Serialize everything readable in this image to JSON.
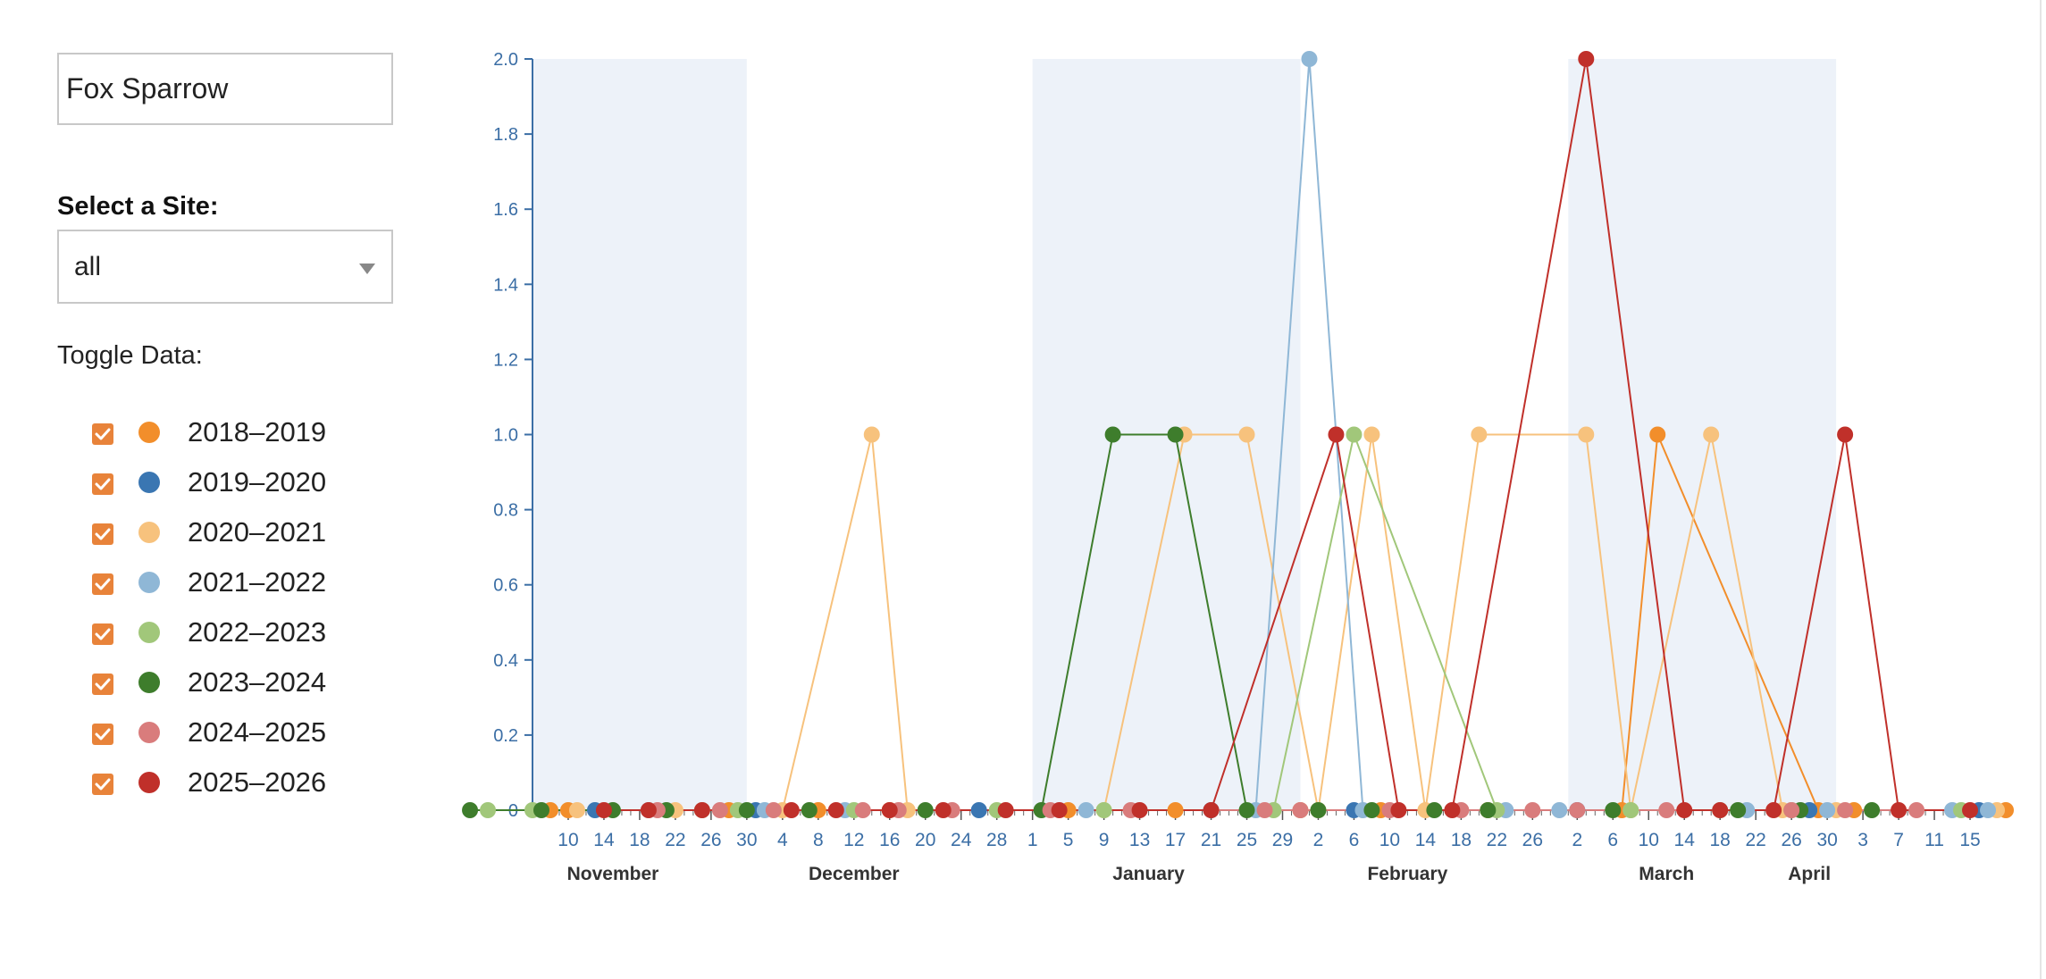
{
  "sidebar": {
    "species": "Fox Sparrow",
    "site_label": "Select a Site:",
    "site_value": "all",
    "toggle_label": "Toggle Data:"
  },
  "colors": {
    "check": "#e8833a",
    "axis": "#3b6ea5",
    "band": "#edf2f9",
    "seasons": {
      "2018–2019": "#f28e2b",
      "2019–2020": "#3a76b2",
      "2020–2021": "#f7c27d",
      "2021–2022": "#8fb7d6",
      "2022–2023": "#a1c77a",
      "2023–2024": "#3e7d2c",
      "2024–2025": "#d97c7c",
      "2025–2026": "#c0302a"
    }
  },
  "chart_data": {
    "type": "line",
    "ylim": [
      0,
      2.0
    ],
    "yticks": [
      "2.0",
      "1.8",
      "1.6",
      "1.4",
      "1.2",
      "1.0",
      "0.8",
      "0.6",
      "0.4",
      "0.2",
      "0"
    ],
    "xlim": [
      "2019-11-06",
      "2020-04-19"
    ],
    "xtick_labels": [
      "10",
      "14",
      "18",
      "22",
      "26",
      "30",
      "4",
      "8",
      "12",
      "16",
      "20",
      "24",
      "28",
      "1",
      "5",
      "9",
      "13",
      "17",
      "21",
      "25",
      "29",
      "2",
      "6",
      "10",
      "14",
      "18",
      "22",
      "26",
      "2",
      "6",
      "10",
      "14",
      "18",
      "22",
      "26",
      "30",
      "3",
      "7",
      "11",
      "15"
    ],
    "xtick_dates": [
      "2019-11-10",
      "2019-11-14",
      "2019-11-18",
      "2019-11-22",
      "2019-11-26",
      "2019-11-30",
      "2019-12-04",
      "2019-12-08",
      "2019-12-12",
      "2019-12-16",
      "2019-12-20",
      "2019-12-24",
      "2019-12-28",
      "2020-01-01",
      "2020-01-05",
      "2020-01-09",
      "2020-01-13",
      "2020-01-17",
      "2020-01-21",
      "2020-01-25",
      "2020-01-29",
      "2020-02-02",
      "2020-02-06",
      "2020-02-10",
      "2020-02-14",
      "2020-02-18",
      "2020-02-22",
      "2020-02-26",
      "2020-03-02",
      "2020-03-06",
      "2020-03-10",
      "2020-03-14",
      "2020-03-18",
      "2020-03-22",
      "2020-03-26",
      "2020-03-30",
      "2020-04-03",
      "2020-04-07",
      "2020-04-11",
      "2020-04-15"
    ],
    "months": [
      "November",
      "December",
      "January",
      "February",
      "March",
      "April"
    ],
    "month_mids": [
      "2019-11-15",
      "2019-12-12",
      "2020-01-14",
      "2020-02-12",
      "2020-03-12",
      "2020-03-28"
    ],
    "bands": [
      [
        "2019-11-06",
        "2019-11-30"
      ],
      [
        "2020-01-01",
        "2020-01-31"
      ],
      [
        "2020-03-01",
        "2020-03-31"
      ]
    ],
    "series": [
      {
        "name": "2018–2019",
        "x": [
          "2019-11-08",
          "2019-11-10",
          "2019-11-28",
          "2019-12-08",
          "2019-12-16",
          "2020-01-05",
          "2020-01-17",
          "2020-01-31",
          "2020-02-09",
          "2020-02-21",
          "2020-03-07",
          "2020-03-11",
          "2020-03-29",
          "2020-04-02",
          "2020-04-19"
        ],
        "y": [
          0,
          0,
          0,
          0,
          0,
          0,
          0,
          0,
          0,
          0,
          0,
          1,
          0,
          0,
          0
        ]
      },
      {
        "name": "2019-2020",
        "x": [
          "2019-11-13",
          "2019-12-01",
          "2019-12-26",
          "2020-01-21",
          "2020-02-06",
          "2020-03-02",
          "2020-03-28",
          "2020-04-16"
        ],
        "y": [
          0,
          0,
          0,
          0,
          0,
          0,
          0,
          0
        ]
      },
      {
        "name": "2020–2021",
        "x": [
          "2019-11-11",
          "2019-11-22",
          "2019-12-04",
          "2019-12-14",
          "2019-12-18",
          "2020-01-09",
          "2020-01-18",
          "2020-01-25",
          "2020-02-02",
          "2020-02-08",
          "2020-02-14",
          "2020-02-20",
          "2020-03-03",
          "2020-03-08",
          "2020-03-17",
          "2020-03-25",
          "2020-03-31",
          "2020-04-18"
        ],
        "y": [
          0,
          0,
          0,
          1,
          0,
          0,
          1,
          1,
          0,
          1,
          0,
          1,
          1,
          0,
          1,
          0,
          0,
          0
        ]
      },
      {
        "name": "2021–2022",
        "x": [
          "2019-11-19",
          "2019-12-02",
          "2019-12-11",
          "2020-01-07",
          "2020-01-26",
          "2020-02-01",
          "2020-02-07",
          "2020-02-23",
          "2020-02-29",
          "2020-03-21",
          "2020-03-30",
          "2020-04-13",
          "2020-04-17"
        ],
        "y": [
          0,
          0,
          0,
          0,
          0,
          2,
          0,
          0,
          0,
          0,
          0,
          0,
          0
        ]
      },
      {
        "name": "2022–2023",
        "x": [
          "2019-11-01",
          "2019-11-06",
          "2019-11-25",
          "2019-11-29",
          "2019-12-12",
          "2019-12-28",
          "2020-01-09",
          "2020-01-28",
          "2020-02-06",
          "2020-02-22",
          "2020-03-08",
          "2020-03-18",
          "2020-03-26",
          "2020-04-14"
        ],
        "y": [
          0,
          0,
          0,
          0,
          0,
          0,
          0,
          0,
          1,
          0,
          0,
          0,
          0,
          0
        ]
      },
      {
        "name": "2023–2024",
        "x": [
          "2019-10-30",
          "2019-11-07",
          "2019-11-15",
          "2019-11-21",
          "2019-11-30",
          "2019-12-07",
          "2019-12-20",
          "2020-01-02",
          "2020-01-10",
          "2020-01-17",
          "2020-01-25",
          "2020-02-02",
          "2020-02-08",
          "2020-02-15",
          "2020-02-21",
          "2020-03-06",
          "2020-03-20",
          "2020-03-27",
          "2020-04-04"
        ],
        "y": [
          0,
          0,
          0,
          0,
          0,
          0,
          0,
          0,
          1,
          1,
          0,
          0,
          0,
          0,
          0,
          0,
          0,
          0,
          0
        ]
      },
      {
        "name": "2024–2025",
        "x": [
          "2019-11-20",
          "2019-11-27",
          "2019-12-03",
          "2019-12-13",
          "2019-12-17",
          "2019-12-23",
          "2020-01-03",
          "2020-01-12",
          "2020-01-27",
          "2020-01-31",
          "2020-02-10",
          "2020-02-18",
          "2020-02-26",
          "2020-03-02",
          "2020-03-12",
          "2020-03-26",
          "2020-04-01",
          "2020-04-09"
        ],
        "y": [
          0,
          0,
          0,
          0,
          0,
          0,
          0,
          0,
          0,
          0,
          0,
          0,
          0,
          0,
          0,
          0,
          0,
          0
        ]
      },
      {
        "name": "2025–2026",
        "x": [
          "2019-11-14",
          "2019-11-19",
          "2019-11-25",
          "2019-12-05",
          "2019-12-10",
          "2019-12-16",
          "2019-12-22",
          "2019-12-29",
          "2020-01-04",
          "2020-01-13",
          "2020-01-21",
          "2020-02-04",
          "2020-02-11",
          "2020-02-17",
          "2020-03-03",
          "2020-03-14",
          "2020-03-18",
          "2020-03-24",
          "2020-04-01",
          "2020-04-07",
          "2020-04-15"
        ],
        "y": [
          0,
          0,
          0,
          0,
          0,
          0,
          0,
          0,
          0,
          0,
          0,
          1,
          0,
          0,
          2,
          0,
          0,
          0,
          1,
          0,
          0
        ]
      }
    ]
  }
}
